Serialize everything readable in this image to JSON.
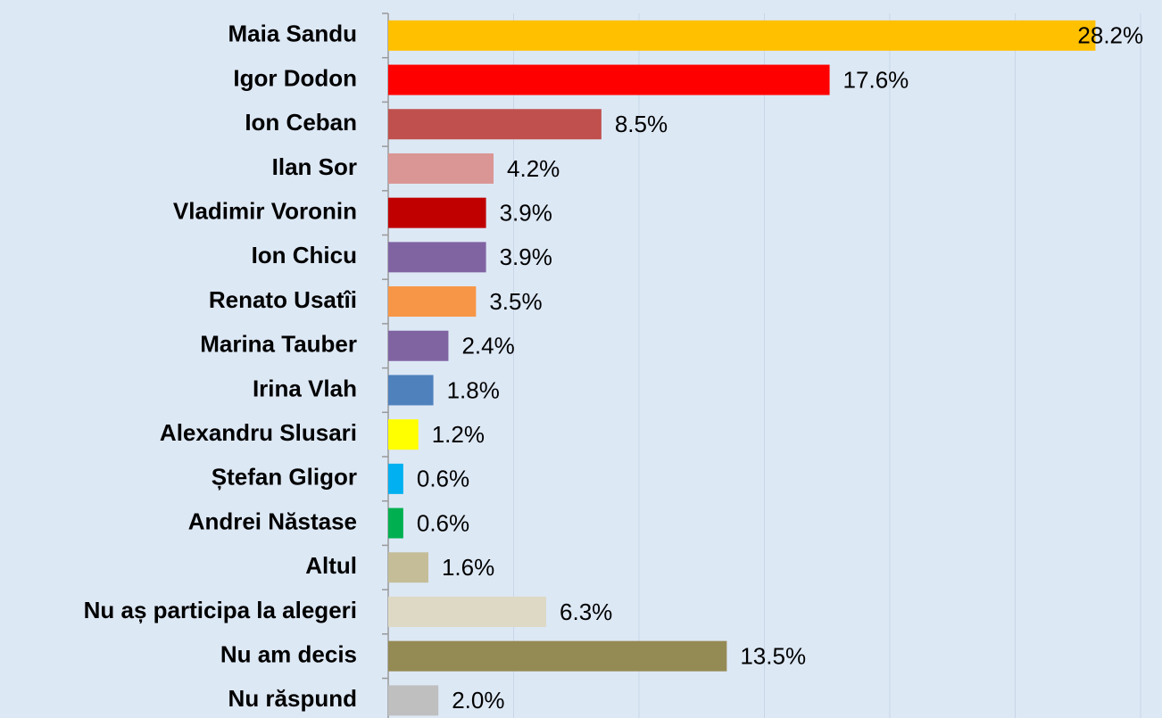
{
  "chart_data": {
    "type": "bar",
    "orientation": "horizontal",
    "categories": [
      "Maia Sandu",
      "Igor Dodon",
      "Ion Ceban",
      "Ilan Sor",
      "Vladimir Voronin",
      "Ion Chicu",
      "Renato Usatîi",
      "Marina Tauber",
      "Irina Vlah",
      "Alexandru Slusari",
      "Ștefan Gligor",
      "Andrei Năstase",
      "Altul",
      "Nu aș participa la alegeri",
      "Nu am decis",
      "Nu răspund"
    ],
    "values": [
      28.2,
      17.6,
      8.5,
      4.2,
      3.9,
      3.9,
      3.5,
      2.4,
      1.8,
      1.2,
      0.6,
      0.6,
      1.6,
      6.3,
      13.5,
      2.0
    ],
    "value_labels": [
      "28.2%",
      "17.6%",
      "8.5%",
      "4.2%",
      "3.9%",
      "3.9%",
      "3.5%",
      "2.4%",
      "1.8%",
      "1.2%",
      "0.6%",
      "0.6%",
      "1.6%",
      "6.3%",
      "13.5%",
      "2.0%"
    ],
    "colors": [
      "#ffc000",
      "#ff0000",
      "#c0504d",
      "#da9694",
      "#c00000",
      "#8064a2",
      "#f79646",
      "#8064a2",
      "#4f81bd",
      "#ffff00",
      "#00b0f0",
      "#00b050",
      "#c4bd97",
      "#ddd9c4",
      "#948a54",
      "#bfbfbf"
    ],
    "xlim": [
      0,
      30
    ],
    "xticks": [
      0,
      5,
      10,
      15,
      20,
      25,
      30
    ],
    "grid": true
  }
}
